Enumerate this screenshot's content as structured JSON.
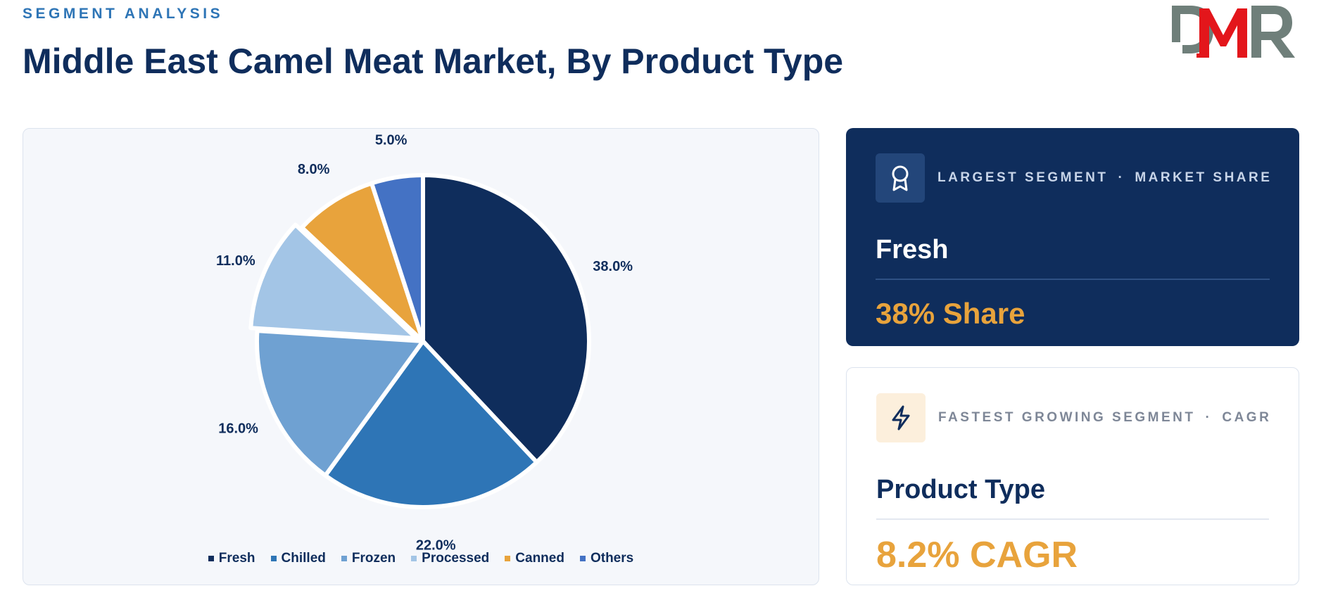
{
  "header": {
    "eyebrow": "SEGMENT ANALYSIS",
    "title": "Middle East Camel Meat Market, By Product Type"
  },
  "chart_data": {
    "type": "pie",
    "title": "",
    "categories": [
      "Fresh",
      "Chilled",
      "Frozen",
      "Processed",
      "Canned",
      "Others"
    ],
    "values": [
      38.0,
      22.0,
      16.0,
      11.0,
      8.0,
      5.0
    ],
    "labels": [
      "38.0%",
      "22.0%",
      "16.0%",
      "11.0%",
      "8.0%",
      "5.0%"
    ],
    "colors": [
      "#0f2d5c",
      "#2e75b6",
      "#6fa1d2",
      "#a3c5e6",
      "#e8a33c",
      "#4472c4"
    ],
    "exploded": "Processed",
    "legend_position": "bottom"
  },
  "cards": {
    "largest": {
      "label_left": "LARGEST SEGMENT",
      "separator": "·",
      "label_right": "MARKET SHARE",
      "name": "Fresh",
      "value": "38% Share",
      "icon": "award-ribbon-icon"
    },
    "fastest": {
      "label_left": "FASTEST GROWING SEGMENT",
      "separator": "·",
      "label_right": "CAGR",
      "name": "Product Type",
      "value": "8.2% CAGR",
      "icon": "lightning-bolt-icon"
    }
  },
  "logo": {
    "text": "DMR",
    "colors": {
      "gray": "#6f7f7a",
      "red": "#e3161b"
    }
  }
}
